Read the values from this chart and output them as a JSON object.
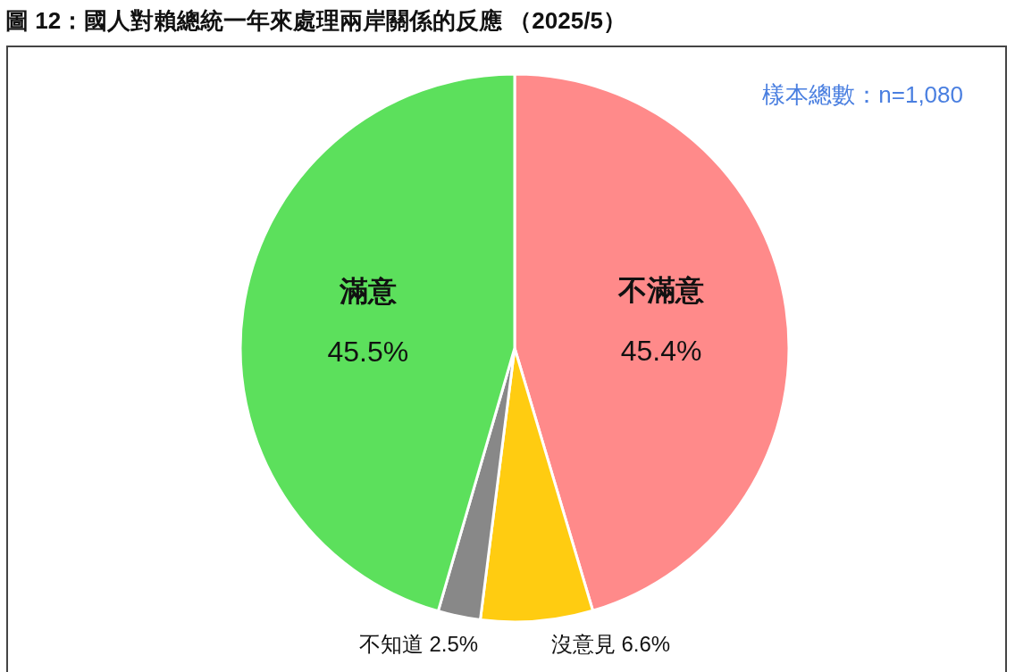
{
  "chart_data": {
    "type": "pie",
    "title": "圖 12：國人對賴總統一年來處理兩岸關係的反應 （2025/5）",
    "categories": [
      "不滿意",
      "沒意見",
      "不知道",
      "滿意"
    ],
    "values": [
      45.4,
      6.6,
      2.5,
      45.5
    ],
    "colors": [
      "#ff8a8a",
      "#ffcc11",
      "#888888",
      "#5ce05c"
    ],
    "value_labels": [
      "45.4%",
      "6.6%",
      "2.5%",
      "45.5%"
    ],
    "annotations": [
      "樣本總數：n=1,080"
    ]
  }
}
